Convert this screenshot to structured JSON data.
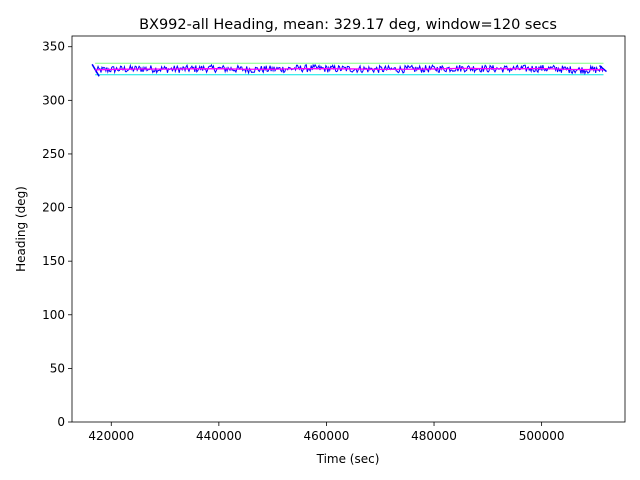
{
  "chart_data": {
    "type": "line",
    "title": "BX992-all Heading, mean: 329.17 deg, window=120 secs",
    "xlabel": "Time (sec)",
    "ylabel": "Heading (deg)",
    "xlim": [
      412700,
      515500
    ],
    "ylim": [
      0,
      360
    ],
    "x_ticks": [
      420000,
      440000,
      460000,
      480000,
      500000
    ],
    "x_tick_labels": [
      "420000",
      "440000",
      "460000",
      "480000",
      "500000"
    ],
    "y_ticks": [
      0,
      50,
      100,
      150,
      200,
      250,
      300,
      350
    ],
    "y_tick_labels": [
      "0",
      "50",
      "100",
      "150",
      "200",
      "250",
      "300",
      "350"
    ],
    "grid": false,
    "legend": "none",
    "x_range": [
      417000,
      511500
    ],
    "series": [
      {
        "style": "raw-samples",
        "color": "#0000ff",
        "x": [
          417000,
          418000,
          419000,
          420000,
          422000,
          424000,
          426000,
          428000,
          430000,
          432000,
          434000,
          436000,
          438000,
          440000,
          442000,
          444000,
          446000,
          448000,
          450000,
          452000,
          454000,
          456000,
          458000,
          460000,
          462000,
          464000,
          466000,
          468000,
          470000,
          472000,
          474000,
          476000,
          478000,
          480000,
          482000,
          484000,
          486000,
          488000,
          490000,
          492000,
          494000,
          496000,
          498000,
          500000,
          502000,
          504000,
          506000,
          508000,
          510000,
          511500
        ],
        "mean": [
          328.0,
          328.2,
          328.5,
          328.8,
          329.0,
          329.2,
          329.4,
          329.3,
          329.1,
          329.0,
          329.2,
          329.5,
          329.6,
          329.5,
          329.3,
          329.0,
          328.9,
          328.9,
          329.0,
          329.3,
          329.6,
          329.8,
          329.7,
          329.5,
          329.4,
          329.3,
          329.2,
          329.0,
          328.9,
          328.9,
          329.0,
          329.1,
          329.2,
          329.4,
          329.6,
          329.9,
          330.0,
          329.8,
          329.5,
          329.4,
          329.3,
          329.4,
          329.6,
          329.7,
          329.5,
          329.0,
          328.5,
          328.4,
          328.5,
          328.7
        ],
        "spread": 3.5
      },
      {
        "style": "rolling-mean",
        "color": "#ff00ff",
        "x": [
          417000,
          420000,
          425000,
          430000,
          435000,
          440000,
          445000,
          450000,
          455000,
          460000,
          465000,
          470000,
          475000,
          480000,
          485000,
          490000,
          495000,
          500000,
          505000,
          511500
        ],
        "values": [
          328.4,
          328.8,
          329.2,
          329.1,
          329.4,
          329.5,
          329.0,
          329.0,
          329.6,
          329.5,
          329.3,
          328.9,
          329.0,
          329.3,
          329.8,
          329.5,
          329.4,
          329.7,
          328.9,
          328.6
        ]
      },
      {
        "style": "upper-band",
        "color": "#7fff7f",
        "x": [
          417000,
          511500
        ],
        "values": [
          334.6,
          334.6
        ]
      },
      {
        "style": "lower-band",
        "color": "#00e5e5",
        "x": [
          417000,
          511500
        ],
        "values": [
          323.8,
          323.8
        ]
      }
    ]
  }
}
